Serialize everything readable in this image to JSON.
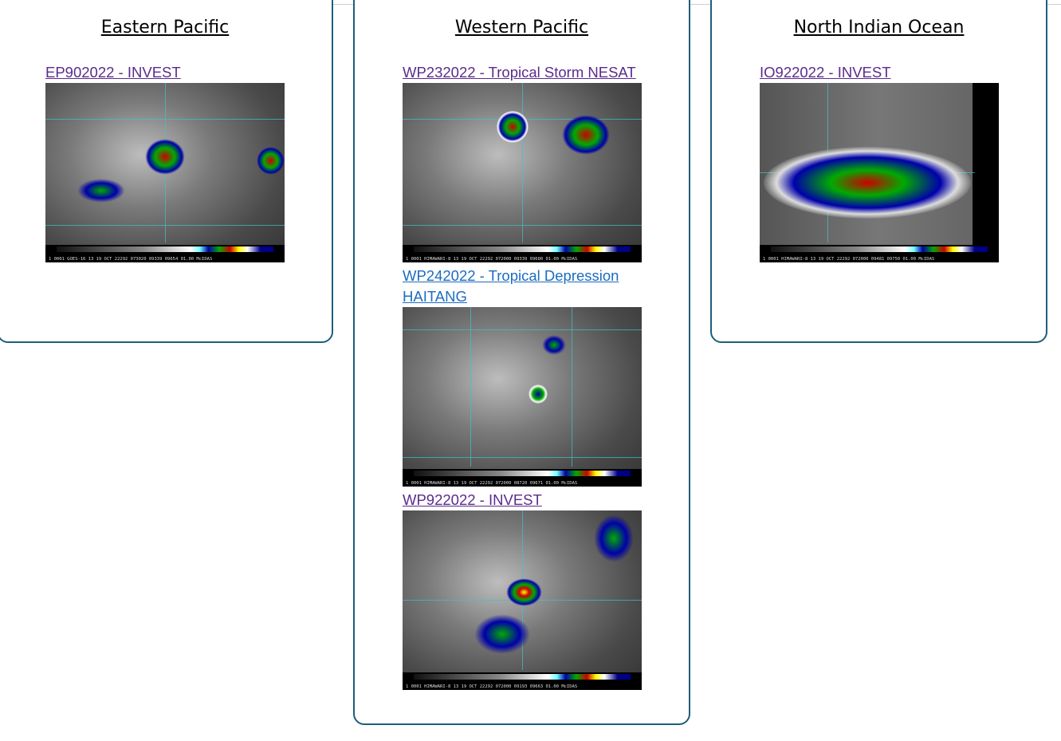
{
  "basins": [
    {
      "title": "Eastern Pacific",
      "storms": [
        {
          "label": "EP902022 - INVEST",
          "visited": true,
          "caption": "1 0001 GOES-16   13 19 OCT 22292 073020 09339 09654 01.00   McIDAS"
        }
      ]
    },
    {
      "title": "Western Pacific",
      "storms": [
        {
          "label": "WP232022 - Tropical Storm NESAT",
          "visited": true,
          "caption": "1 0001 HIMAWARI-8  13 19 OCT 22292 072000 09339 09680 01.00   McIDAS"
        },
        {
          "label": "WP242022 - Tropical Depression HAITANG",
          "visited": false,
          "caption": "1 0001 HIMAWARI-8  13 19 OCT 22292 072000 08720 09671 01.00   McIDAS"
        },
        {
          "label": "WP922022 - INVEST",
          "visited": true,
          "caption": "1 0001 HIMAWARI-8  13 19 OCT 22292 072000 09193 09663 01.00   McIDAS"
        }
      ]
    },
    {
      "title": "North Indian Ocean",
      "storms": [
        {
          "label": "IO922022 - INVEST",
          "visited": true,
          "caption": "1 0001 HIMAWARI-8  13 19 OCT 22292 072000 09481 09750 01.00   McIDAS"
        }
      ]
    }
  ],
  "colors": {
    "panel_border": "#1d5f7a",
    "link_visited": "#5b2b8c",
    "link_unvisited": "#1c6cc0"
  }
}
